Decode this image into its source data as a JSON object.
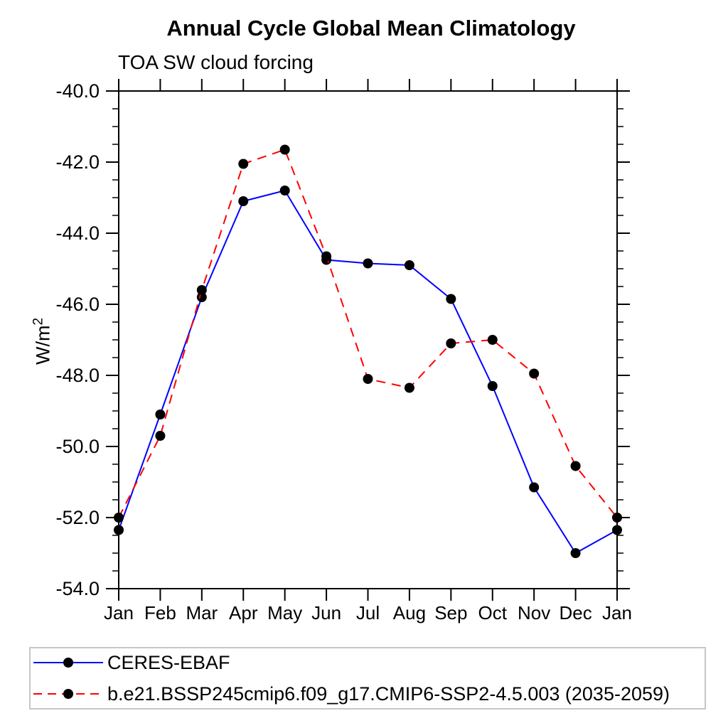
{
  "chart_data": {
    "type": "line",
    "title": "Annual Cycle Global Mean Climatology",
    "subtitle": "TOA SW cloud forcing",
    "ylabel": "W/m²",
    "ylabel_base": "W/m",
    "ylabel_exp": "2",
    "xlabel": "",
    "categories": [
      "Jan",
      "Feb",
      "Mar",
      "Apr",
      "May",
      "Jun",
      "Jul",
      "Aug",
      "Sep",
      "Oct",
      "Nov",
      "Dec",
      "Jan"
    ],
    "series": [
      {
        "name": "CERES-EBAF",
        "color": "#0000ff",
        "line_style": "solid",
        "marker": "filled-circle",
        "marker_color": "#000000",
        "values": [
          -52.35,
          -49.1,
          -45.8,
          -43.1,
          -42.8,
          -44.75,
          -44.85,
          -44.9,
          -45.85,
          -48.3,
          -51.15,
          -53.0,
          -52.35
        ]
      },
      {
        "name": "b.e21.BSSP245cmip6.f09_g17.CMIP6-SSP2-4.5.003 (2035-2059)",
        "color": "#ff0000",
        "line_style": "dashed",
        "marker": "filled-circle",
        "marker_color": "#000000",
        "values": [
          -52.0,
          -49.7,
          -45.6,
          -42.05,
          -41.65,
          -44.65,
          -48.1,
          -48.35,
          -47.1,
          -47.0,
          -47.95,
          -50.55,
          -52.0
        ]
      }
    ],
    "ylim": [
      -54.0,
      -40.0
    ],
    "ytick_step": 2.0,
    "yminor_step": 0.5,
    "ytick_labels": [
      "-40.0",
      "-42.0",
      "-44.0",
      "-46.0",
      "-48.0",
      "-50.0",
      "-52.0",
      "-54.0"
    ],
    "grid": false,
    "legend_position": "bottom-left-box",
    "axis_color": "#000000",
    "background_color": "#ffffff"
  }
}
